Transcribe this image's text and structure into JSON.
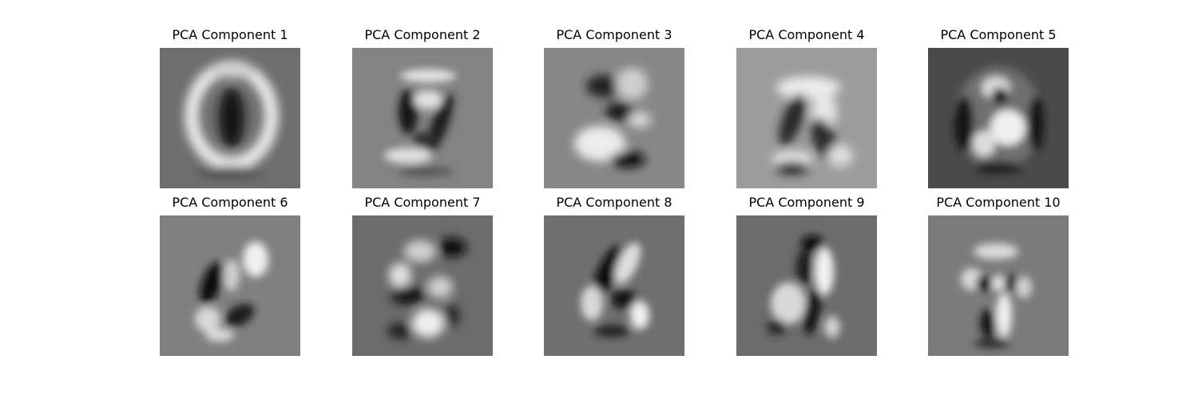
{
  "figure": {
    "panels": [
      {
        "title": "PCA Component 1",
        "background": "#6e6e6e",
        "icon": "digit-zero-eigenimage"
      },
      {
        "title": "PCA Component 2",
        "background": "#838383",
        "icon": "digit-nine-eigenimage"
      },
      {
        "title": "PCA Component 3",
        "background": "#878787",
        "icon": "digit-three-eigenimage"
      },
      {
        "title": "PCA Component 4",
        "background": "#9c9c9c",
        "icon": "digit-five-eigenimage"
      },
      {
        "title": "PCA Component 5",
        "background": "#4a4a4a",
        "icon": "mixed-strokes-eigenimage"
      },
      {
        "title": "PCA Component 6",
        "background": "#808080",
        "icon": "swirl-eigenimage"
      },
      {
        "title": "PCA Component 7",
        "background": "#6c6c6c",
        "icon": "blob-eigenimage"
      },
      {
        "title": "PCA Component 8",
        "background": "#6f6f6f",
        "icon": "diagonal-strokes-eigenimage"
      },
      {
        "title": "PCA Component 9",
        "background": "#6c6c6c",
        "icon": "digit-seven-eigenimage"
      },
      {
        "title": "PCA Component 10",
        "background": "#7b7b7b",
        "icon": "dots-eigenimage"
      }
    ]
  }
}
